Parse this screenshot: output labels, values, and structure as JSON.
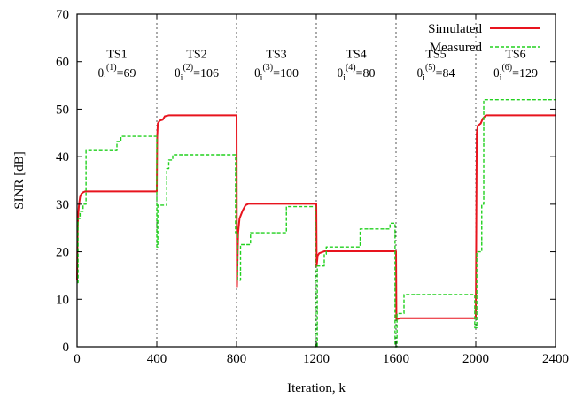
{
  "chart_data": {
    "type": "line",
    "title": "",
    "xlabel": "Iteration, k",
    "ylabel": "SINR [dB]",
    "xlim": [
      0,
      2400
    ],
    "ylim": [
      0,
      70
    ],
    "xticks": [
      0,
      400,
      800,
      1200,
      1600,
      2000,
      2400
    ],
    "yticks": [
      0,
      10,
      20,
      30,
      40,
      50,
      60,
      70
    ],
    "grid": false,
    "legend_position": "top-right",
    "dividers": [
      400,
      800,
      1200,
      1600,
      2000
    ],
    "slot_labels": [
      {
        "x": 200,
        "ts": "TS1",
        "theta_base": "θ",
        "theta_sub": "i",
        "theta_sup": "(1)",
        "theta_value": "=69"
      },
      {
        "x": 600,
        "ts": "TS2",
        "theta_base": "θ",
        "theta_sub": "i",
        "theta_sup": "(2)",
        "theta_value": "=106"
      },
      {
        "x": 1000,
        "ts": "TS3",
        "theta_base": "θ",
        "theta_sub": "i",
        "theta_sup": "(3)",
        "theta_value": "=100"
      },
      {
        "x": 1400,
        "ts": "TS4",
        "theta_base": "θ",
        "theta_sub": "i",
        "theta_sup": "(4)",
        "theta_value": "=80"
      },
      {
        "x": 1800,
        "ts": "TS5",
        "theta_base": "θ",
        "theta_sub": "i",
        "theta_sup": "(5)",
        "theta_value": "=84"
      },
      {
        "x": 2200,
        "ts": "TS6",
        "theta_base": "θ",
        "theta_sub": "i",
        "theta_sup": "(6)",
        "theta_value": "=129"
      }
    ],
    "series": [
      {
        "name": "Simulated",
        "color": "#e8141e",
        "dash": "solid",
        "points": [
          [
            0,
            14
          ],
          [
            3,
            25
          ],
          [
            6,
            28
          ],
          [
            10,
            30
          ],
          [
            15,
            31.5
          ],
          [
            22,
            32.2
          ],
          [
            30,
            32.5
          ],
          [
            40,
            32.7
          ],
          [
            400,
            32.7
          ],
          [
            402,
            44
          ],
          [
            405,
            47
          ],
          [
            415,
            47.6
          ],
          [
            430,
            47.8
          ],
          [
            440,
            48.5
          ],
          [
            460,
            48.7
          ],
          [
            800,
            48.7
          ],
          [
            802,
            12.5
          ],
          [
            808,
            24
          ],
          [
            815,
            27
          ],
          [
            830,
            28.6
          ],
          [
            845,
            29.8
          ],
          [
            860,
            30.1
          ],
          [
            1200,
            30.1
          ],
          [
            1202,
            17
          ],
          [
            1207,
            19.2
          ],
          [
            1215,
            19.7
          ],
          [
            1240,
            20.1
          ],
          [
            1600,
            20.1
          ],
          [
            1602,
            5.8
          ],
          [
            1620,
            6
          ],
          [
            2000,
            6
          ],
          [
            2002,
            21
          ],
          [
            2005,
            45
          ],
          [
            2010,
            46.5
          ],
          [
            2025,
            47
          ],
          [
            2035,
            48
          ],
          [
            2050,
            48.7
          ],
          [
            2400,
            48.7
          ]
        ]
      },
      {
        "name": "Measured",
        "color": "#22d11f",
        "dash": "dashed",
        "points": [
          [
            0,
            13.5
          ],
          [
            5,
            13.5
          ],
          [
            5,
            27
          ],
          [
            15,
            27
          ],
          [
            15,
            28.5
          ],
          [
            30,
            28.5
          ],
          [
            30,
            30
          ],
          [
            45,
            30
          ],
          [
            45,
            41.3
          ],
          [
            120,
            41.3
          ],
          [
            120,
            41.3
          ],
          [
            200,
            41.3
          ],
          [
            200,
            43.2
          ],
          [
            220,
            43.2
          ],
          [
            220,
            44.3
          ],
          [
            400,
            44.3
          ],
          [
            400,
            21
          ],
          [
            405,
            21
          ],
          [
            405,
            29.8
          ],
          [
            450,
            29.8
          ],
          [
            450,
            37.5
          ],
          [
            460,
            37.5
          ],
          [
            460,
            39.3
          ],
          [
            480,
            39.3
          ],
          [
            480,
            40.4
          ],
          [
            795,
            40.4
          ],
          [
            795,
            24
          ],
          [
            805,
            24
          ],
          [
            805,
            14
          ],
          [
            820,
            14
          ],
          [
            820,
            21.5
          ],
          [
            845,
            21.5
          ],
          [
            845,
            21.5
          ],
          [
            870,
            21.5
          ],
          [
            870,
            24
          ],
          [
            1050,
            24
          ],
          [
            1050,
            29.5
          ],
          [
            1195,
            29.5
          ],
          [
            1195,
            0
          ],
          [
            1205,
            0
          ],
          [
            1205,
            17
          ],
          [
            1240,
            17
          ],
          [
            1240,
            19.5
          ],
          [
            1250,
            19.5
          ],
          [
            1250,
            21
          ],
          [
            1420,
            21
          ],
          [
            1420,
            24.8
          ],
          [
            1570,
            24.8
          ],
          [
            1570,
            26
          ],
          [
            1595,
            26
          ],
          [
            1595,
            0
          ],
          [
            1605,
            0
          ],
          [
            1605,
            7
          ],
          [
            1640,
            7
          ],
          [
            1640,
            11
          ],
          [
            1995,
            11
          ],
          [
            1995,
            4
          ],
          [
            2005,
            4
          ],
          [
            2005,
            20
          ],
          [
            2030,
            20
          ],
          [
            2030,
            30
          ],
          [
            2040,
            30
          ],
          [
            2040,
            52
          ],
          [
            2400,
            52
          ]
        ]
      }
    ]
  }
}
